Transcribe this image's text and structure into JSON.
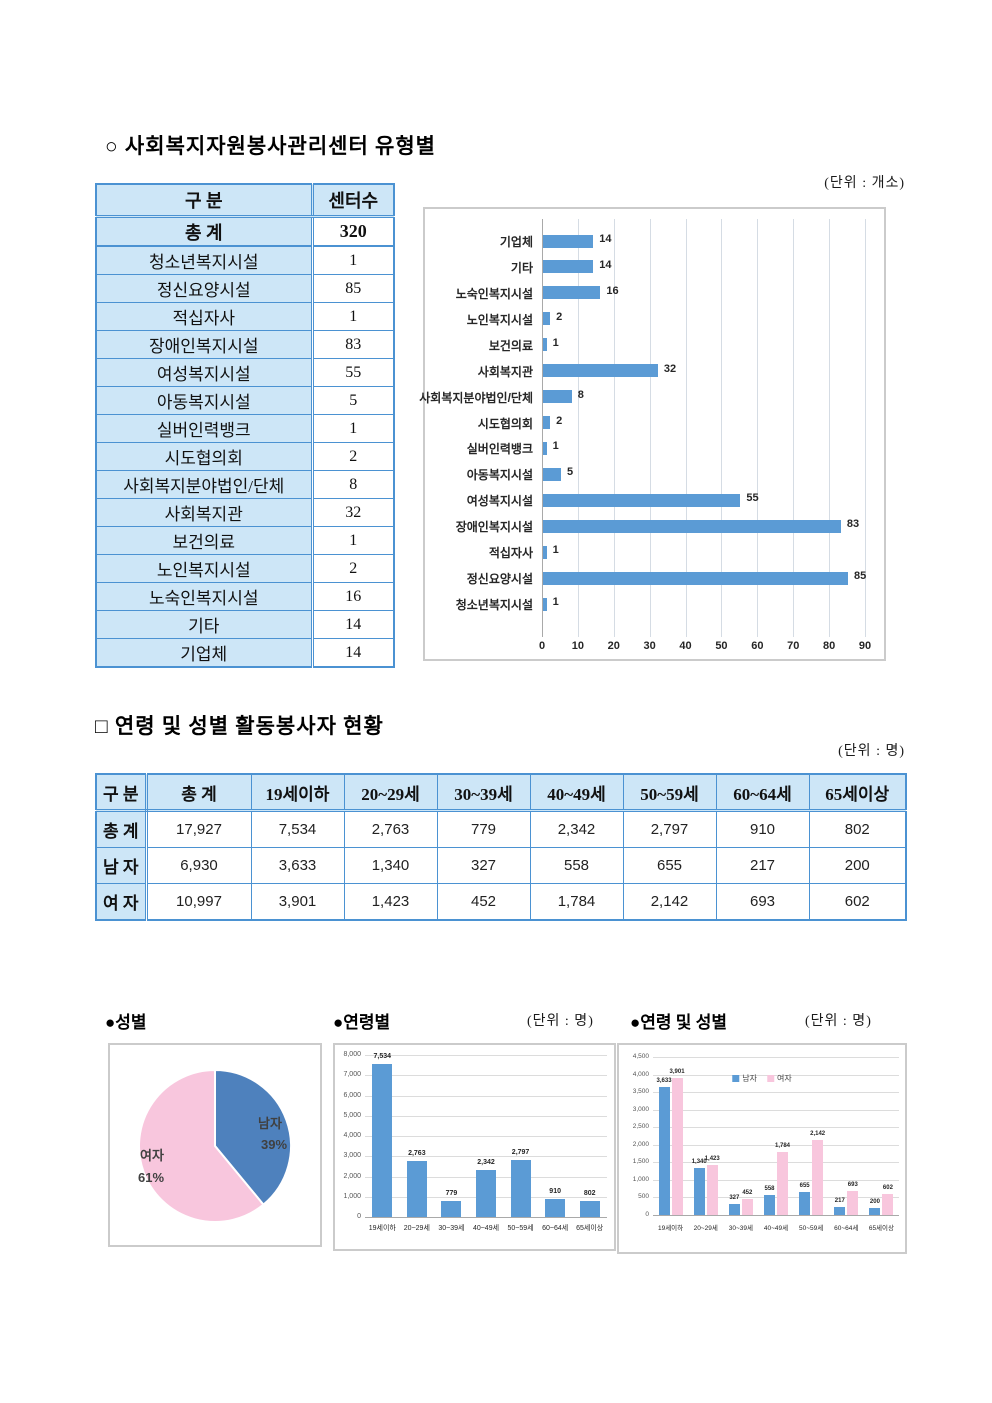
{
  "section1": {
    "title": "○ 사회복지자원봉사관리센터 유형별",
    "unit_label": "(단위 : 개소)"
  },
  "table1": {
    "col_headers": [
      "구    분",
      "센터수"
    ],
    "total_row": {
      "label": "총    계",
      "value": "320"
    },
    "rows": [
      {
        "label": "청소년복지시설",
        "value": "1"
      },
      {
        "label": "정신요양시설",
        "value": "85"
      },
      {
        "label": "적십자사",
        "value": "1"
      },
      {
        "label": "장애인복지시설",
        "value": "83"
      },
      {
        "label": "여성복지시설",
        "value": "55"
      },
      {
        "label": "아동복지시설",
        "value": "5"
      },
      {
        "label": "실버인력뱅크",
        "value": "1"
      },
      {
        "label": "시도협의회",
        "value": "2"
      },
      {
        "label": "사회복지분야법인/단체",
        "value": "8"
      },
      {
        "label": "사회복지관",
        "value": "32"
      },
      {
        "label": "보건의료",
        "value": "1"
      },
      {
        "label": "노인복지시설",
        "value": "2"
      },
      {
        "label": "노숙인복지시설",
        "value": "16"
      },
      {
        "label": "기타",
        "value": "14"
      },
      {
        "label": "기업체",
        "value": "14"
      }
    ]
  },
  "section2": {
    "title": "□ 연령 및 성별 활동봉사자 현황",
    "unit_label": "(단위 : 명)"
  },
  "table2": {
    "col_headers": [
      "구 분",
      "총 계",
      "19세이하",
      "20~29세",
      "30~39세",
      "40~49세",
      "50~59세",
      "60~64세",
      "65세이상"
    ],
    "rows": [
      {
        "label": "총 계",
        "values": [
          "17,927",
          "7,534",
          "2,763",
          "779",
          "2,342",
          "2,797",
          "910",
          "802"
        ]
      },
      {
        "label": "남 자",
        "values": [
          "6,930",
          "3,633",
          "1,340",
          "327",
          "558",
          "655",
          "217",
          "200"
        ]
      },
      {
        "label": "여 자",
        "values": [
          "10,997",
          "3,901",
          "1,423",
          "452",
          "1,784",
          "2,142",
          "693",
          "602"
        ]
      }
    ]
  },
  "bottom_titles": {
    "pie_title": "●성별",
    "age_title": "●연령별",
    "age_unit": "(단위 : 명)",
    "agegender_title": "●연령 및 성별",
    "agegender_unit": "(단위 : 명)"
  },
  "colors": {
    "bar_blue": "#5B9BD5",
    "pie_blue": "#4E81BD",
    "pink": "#F8C6DD",
    "table_fill": "#CDE6F7",
    "table_border": "#4B92D2"
  },
  "chart_data": [
    {
      "id": "center-type-hbar",
      "type": "bar",
      "orientation": "horizontal",
      "unit": "개소",
      "categories": [
        "기업체",
        "기타",
        "노숙인복지시설",
        "노인복지시설",
        "보건의료",
        "사회복지관",
        "사회복지분야법인/단체",
        "시도협의회",
        "실버인력뱅크",
        "아동복지시설",
        "여성복지시설",
        "장애인복지시설",
        "적십자사",
        "정신요양시설",
        "청소년복지시설"
      ],
      "values": [
        14,
        14,
        16,
        2,
        1,
        32,
        8,
        2,
        1,
        5,
        55,
        83,
        1,
        85,
        1
      ],
      "xlim": [
        0,
        90
      ],
      "xticks": [
        0,
        10,
        20,
        30,
        40,
        50,
        60,
        70,
        80,
        90
      ],
      "grid": true,
      "legend": "none"
    },
    {
      "id": "gender-pie",
      "type": "pie",
      "title": "성별",
      "labels": [
        "남자",
        "여자"
      ],
      "values_pct": [
        39,
        61
      ],
      "pct_text": [
        "39%",
        "61%"
      ]
    },
    {
      "id": "age-vbar",
      "type": "bar",
      "title": "연령별",
      "unit": "명",
      "categories": [
        "19세이하",
        "20~29세",
        "30~39세",
        "40~49세",
        "50~59세",
        "60~64세",
        "65세이상"
      ],
      "values": [
        7534,
        2763,
        779,
        2342,
        2797,
        910,
        802
      ],
      "value_labels": [
        "7,534",
        "2,763",
        "779",
        "2,342",
        "2,797",
        "910",
        "802"
      ],
      "ylim": [
        0,
        8000
      ],
      "ytick_step": 1000,
      "grid": true
    },
    {
      "id": "age-gender-vbar",
      "type": "bar",
      "grouped": true,
      "title": "연령 및 성별",
      "unit": "명",
      "categories": [
        "19세이하",
        "20~29세",
        "30~39세",
        "40~49세",
        "50~59세",
        "60~64세",
        "65세이상"
      ],
      "series": [
        {
          "name": "남자",
          "values": [
            3633,
            1340,
            327,
            558,
            655,
            217,
            200
          ],
          "value_labels": [
            "3,633",
            "1,340",
            "327",
            "558",
            "655",
            "217",
            "200"
          ]
        },
        {
          "name": "여자",
          "values": [
            3901,
            1423,
            452,
            1784,
            2142,
            693,
            602
          ],
          "value_labels": [
            "3,901",
            "1,423",
            "452",
            "1,784",
            "2,142",
            "693",
            "602"
          ]
        }
      ],
      "ylim": [
        0,
        4500
      ],
      "ytick_step": 500,
      "grid": true,
      "legend_position": "top"
    }
  ]
}
